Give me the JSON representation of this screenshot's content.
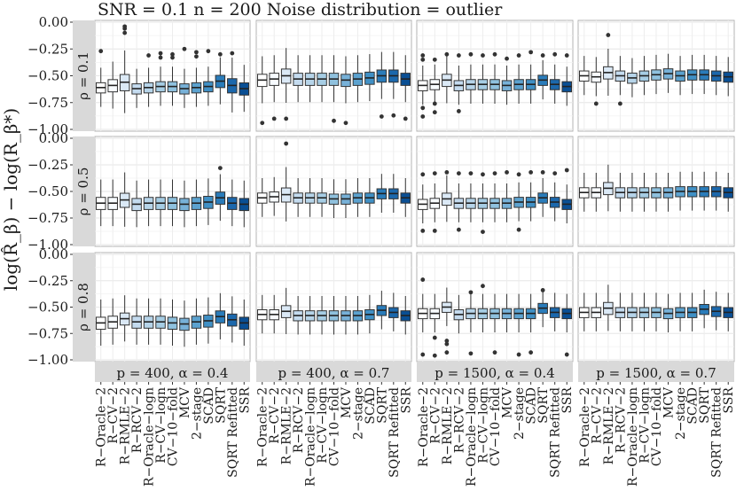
{
  "chart_data": {
    "type": "boxplot-facet-grid",
    "title": "SNR = 0.1 n = 200 Noise distribution = outlier",
    "ylabel": "log(R̂_β) − log(R_β*)",
    "ylim": [
      -1.0,
      0.0
    ],
    "yticks": [
      0.0,
      -0.25,
      -0.5,
      -0.75,
      -1.0
    ],
    "ytick_labels": [
      "0.00",
      "−0.25",
      "−0.50",
      "−0.75",
      "−1.00"
    ],
    "row_labels": [
      "ρ = 0.1",
      "ρ = 0.5",
      "ρ = 0.8"
    ],
    "col_labels": [
      "p = 400, α = 0.4",
      "p = 400, α = 0.7",
      "p = 1500, α = 0.4",
      "p = 1500, α = 0.7"
    ],
    "methods": [
      "R−Oracle−2",
      "R−CV−2",
      "R−RMLE−2",
      "R−RCV−2",
      "R−Oracle−logn",
      "R−CV−logn",
      "CV−10−fold",
      "MCV",
      "2−stage",
      "SCAD",
      "SQRT",
      "SQRT Refitted",
      "SSR"
    ],
    "colors": [
      "#ffffff",
      "#f7fbff",
      "#dbe9f6",
      "#c4dbef",
      "#b6d4e9",
      "#a6cde4",
      "#8fc1de",
      "#77b1d8",
      "#5ca2cf",
      "#4090c5",
      "#2a7cba",
      "#1c68ac",
      "#0a4f94"
    ],
    "panels": [
      [
        {
          "medians": [
            -0.61,
            -0.59,
            -0.56,
            -0.62,
            -0.61,
            -0.6,
            -0.6,
            -0.62,
            -0.61,
            -0.6,
            -0.55,
            -0.59,
            -0.62
          ],
          "spreads": [
            0.05,
            0.06,
            0.08,
            0.05,
            0.05,
            0.05,
            0.05,
            0.05,
            0.05,
            0.05,
            0.06,
            0.07,
            0.06
          ],
          "outliers": [
            [
              1,
              -0.27
            ],
            [
              3,
              -0.06
            ],
            [
              3,
              -0.04
            ],
            [
              3,
              -0.1
            ],
            [
              5,
              -0.31
            ],
            [
              6,
              -0.29
            ],
            [
              6,
              -0.33
            ],
            [
              7,
              -0.3
            ],
            [
              7,
              -0.33
            ],
            [
              8,
              -0.25
            ],
            [
              9,
              -0.32
            ],
            [
              9,
              -0.28
            ],
            [
              10,
              -0.27
            ],
            [
              11,
              -0.3
            ],
            [
              12,
              -0.29
            ]
          ]
        },
        {
          "medians": [
            -0.54,
            -0.53,
            -0.5,
            -0.53,
            -0.53,
            -0.53,
            -0.53,
            -0.54,
            -0.53,
            -0.52,
            -0.5,
            -0.5,
            -0.53
          ],
          "spreads": [
            0.06,
            0.06,
            0.07,
            0.06,
            0.06,
            0.06,
            0.06,
            0.06,
            0.06,
            0.06,
            0.06,
            0.06,
            0.06
          ],
          "outliers": [
            [
              1,
              -0.94
            ],
            [
              2,
              -0.9
            ],
            [
              3,
              -0.9
            ],
            [
              7,
              -0.92
            ],
            [
              8,
              -0.94
            ],
            [
              11,
              -0.88
            ],
            [
              12,
              -0.87
            ],
            [
              13,
              -0.9
            ]
          ]
        },
        {
          "medians": [
            -0.59,
            -0.58,
            -0.54,
            -0.59,
            -0.58,
            -0.58,
            -0.58,
            -0.59,
            -0.58,
            -0.58,
            -0.54,
            -0.58,
            -0.6
          ],
          "spreads": [
            0.05,
            0.05,
            0.06,
            0.05,
            0.05,
            0.05,
            0.05,
            0.05,
            0.05,
            0.05,
            0.05,
            0.05,
            0.05
          ],
          "outliers": [
            [
              1,
              -0.31
            ],
            [
              1,
              -0.35
            ],
            [
              1,
              -0.8
            ],
            [
              2,
              -0.35
            ],
            [
              2,
              -0.76
            ],
            [
              3,
              -0.3
            ],
            [
              4,
              -0.31
            ],
            [
              4,
              -0.83
            ],
            [
              5,
              -0.3
            ],
            [
              6,
              -0.31
            ],
            [
              7,
              -0.3
            ],
            [
              8,
              -0.34
            ],
            [
              9,
              -0.31
            ],
            [
              10,
              -0.28
            ],
            [
              11,
              -0.31
            ],
            [
              12,
              -0.3
            ],
            [
              13,
              -0.31
            ],
            [
              2,
              -0.84
            ],
            [
              1,
              -0.88
            ]
          ]
        },
        {
          "medians": [
            -0.5,
            -0.51,
            -0.47,
            -0.5,
            -0.52,
            -0.5,
            -0.49,
            -0.48,
            -0.5,
            -0.49,
            -0.49,
            -0.5,
            -0.51
          ],
          "spreads": [
            0.05,
            0.05,
            0.06,
            0.05,
            0.05,
            0.05,
            0.05,
            0.05,
            0.05,
            0.05,
            0.05,
            0.05,
            0.05
          ],
          "outliers": [
            [
              2,
              -0.76
            ],
            [
              3,
              -0.12
            ],
            [
              4,
              -0.76
            ]
          ]
        }
      ],
      [
        {
          "medians": [
            -0.61,
            -0.61,
            -0.58,
            -0.62,
            -0.61,
            -0.61,
            -0.61,
            -0.62,
            -0.61,
            -0.6,
            -0.56,
            -0.61,
            -0.62
          ],
          "spreads": [
            0.06,
            0.06,
            0.07,
            0.06,
            0.06,
            0.06,
            0.06,
            0.06,
            0.06,
            0.06,
            0.06,
            0.06,
            0.06
          ],
          "outliers": [
            [
              11,
              -0.28
            ]
          ]
        },
        {
          "medians": [
            -0.56,
            -0.55,
            -0.53,
            -0.56,
            -0.56,
            -0.56,
            -0.57,
            -0.57,
            -0.56,
            -0.56,
            -0.52,
            -0.52,
            -0.56
          ],
          "spreads": [
            0.05,
            0.05,
            0.07,
            0.05,
            0.05,
            0.05,
            0.05,
            0.05,
            0.05,
            0.05,
            0.05,
            0.05,
            0.05
          ],
          "outliers": [
            [
              3,
              -0.05
            ]
          ]
        },
        {
          "medians": [
            -0.62,
            -0.61,
            -0.57,
            -0.61,
            -0.61,
            -0.61,
            -0.61,
            -0.61,
            -0.6,
            -0.6,
            -0.56,
            -0.6,
            -0.62
          ],
          "spreads": [
            0.05,
            0.05,
            0.06,
            0.05,
            0.05,
            0.05,
            0.05,
            0.05,
            0.05,
            0.05,
            0.05,
            0.05,
            0.05
          ],
          "outliers": [
            [
              1,
              -0.34
            ],
            [
              1,
              -0.87
            ],
            [
              2,
              -0.33
            ],
            [
              2,
              -0.87
            ],
            [
              3,
              -0.32
            ],
            [
              4,
              -0.33
            ],
            [
              5,
              -0.33
            ],
            [
              6,
              -0.34
            ],
            [
              7,
              -0.33
            ],
            [
              8,
              -0.32
            ],
            [
              9,
              -0.34
            ],
            [
              10,
              -0.32
            ],
            [
              11,
              -0.32
            ],
            [
              12,
              -0.33
            ],
            [
              13,
              -0.3
            ],
            [
              4,
              -0.86
            ],
            [
              6,
              -0.88
            ],
            [
              9,
              -0.86
            ]
          ]
        },
        {
          "medians": [
            -0.51,
            -0.51,
            -0.47,
            -0.51,
            -0.51,
            -0.51,
            -0.51,
            -0.51,
            -0.5,
            -0.5,
            -0.5,
            -0.5,
            -0.51
          ],
          "spreads": [
            0.05,
            0.05,
            0.06,
            0.05,
            0.05,
            0.05,
            0.05,
            0.05,
            0.05,
            0.05,
            0.05,
            0.05,
            0.05
          ],
          "outliers": []
        }
      ],
      [
        {
          "medians": [
            -0.65,
            -0.64,
            -0.61,
            -0.64,
            -0.64,
            -0.64,
            -0.65,
            -0.66,
            -0.64,
            -0.63,
            -0.59,
            -0.62,
            -0.65
          ],
          "spreads": [
            0.06,
            0.06,
            0.06,
            0.06,
            0.06,
            0.06,
            0.06,
            0.06,
            0.06,
            0.06,
            0.06,
            0.06,
            0.06
          ],
          "outliers": []
        },
        {
          "medians": [
            -0.57,
            -0.57,
            -0.54,
            -0.58,
            -0.58,
            -0.58,
            -0.58,
            -0.58,
            -0.58,
            -0.57,
            -0.53,
            -0.55,
            -0.58
          ],
          "spreads": [
            0.05,
            0.05,
            0.06,
            0.05,
            0.05,
            0.05,
            0.05,
            0.05,
            0.05,
            0.05,
            0.05,
            0.05,
            0.05
          ],
          "outliers": []
        },
        {
          "medians": [
            -0.56,
            -0.56,
            -0.5,
            -0.57,
            -0.56,
            -0.56,
            -0.56,
            -0.56,
            -0.56,
            -0.56,
            -0.51,
            -0.55,
            -0.56
          ],
          "spreads": [
            0.05,
            0.05,
            0.05,
            0.05,
            0.05,
            0.05,
            0.05,
            0.05,
            0.05,
            0.05,
            0.05,
            0.05,
            0.05
          ],
          "outliers": [
            [
              1,
              -0.24
            ],
            [
              1,
              -0.95
            ],
            [
              2,
              -0.79
            ],
            [
              3,
              -0.85
            ],
            [
              3,
              -0.93
            ],
            [
              3,
              -0.82
            ],
            [
              5,
              -0.36
            ],
            [
              5,
              -0.94
            ],
            [
              6,
              -0.3
            ],
            [
              7,
              -0.93
            ],
            [
              9,
              -0.95
            ],
            [
              10,
              -0.93
            ],
            [
              11,
              -0.34
            ],
            [
              13,
              -0.95
            ],
            [
              2,
              -0.96
            ]
          ]
        },
        {
          "medians": [
            -0.55,
            -0.55,
            -0.51,
            -0.55,
            -0.55,
            -0.55,
            -0.55,
            -0.56,
            -0.55,
            -0.55,
            -0.52,
            -0.54,
            -0.55
          ],
          "spreads": [
            0.05,
            0.05,
            0.06,
            0.05,
            0.05,
            0.05,
            0.05,
            0.05,
            0.05,
            0.05,
            0.05,
            0.05,
            0.05
          ],
          "outliers": []
        }
      ]
    ]
  }
}
